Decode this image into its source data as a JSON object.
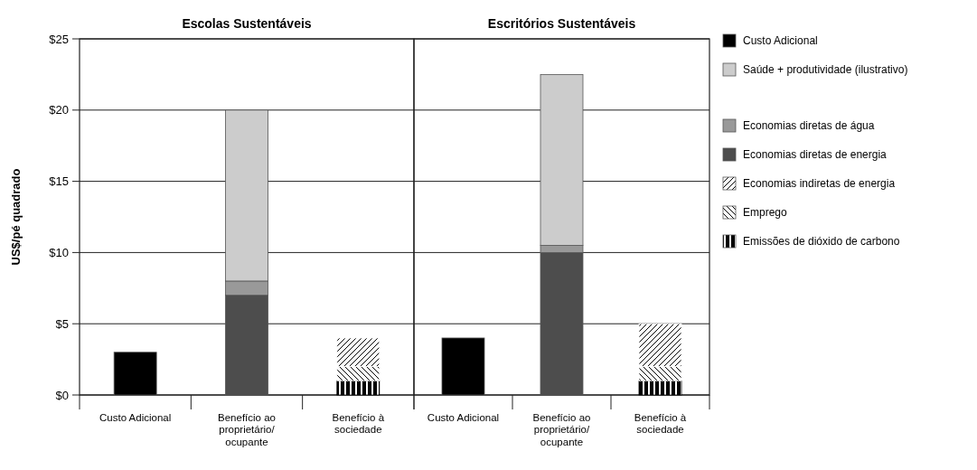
{
  "chart_data": [
    {
      "type": "bar",
      "title": "Escolas Sustentáveis",
      "ylabel": "US$/pé quadrado",
      "categories": [
        "Custo Adicional",
        "Benefício ao proprietário/ocupante",
        "Benefício à sociedade"
      ],
      "stacked": true,
      "ylim": [
        0,
        25
      ],
      "yticks": [
        {
          "value": 0,
          "label": "$0"
        },
        {
          "value": 5,
          "label": "$5"
        },
        {
          "value": 10,
          "label": "$10"
        },
        {
          "value": 15,
          "label": "$15"
        },
        {
          "value": 20,
          "label": "$20"
        },
        {
          "value": 25,
          "label": "$25"
        }
      ],
      "grid": "y",
      "series": [
        {
          "color": "#000000",
          "values": [
            null,
            null,
            1
          ]
        },
        {
          "color": "#ffffff",
          "values": [
            null,
            null,
            1
          ]
        },
        {
          "color": "#ffffff",
          "values": [
            null,
            null,
            2
          ]
        },
        {
          "color": "#4d4d4d",
          "values": [
            null,
            7,
            null
          ]
        },
        {
          "color": "#999999",
          "values": [
            null,
            1,
            null
          ]
        },
        {
          "color": "#cccccc",
          "values": [
            null,
            12,
            null
          ]
        },
        {
          "color": "#000000",
          "values": [
            3,
            null,
            null
          ]
        }
      ]
    },
    {
      "type": "bar",
      "title": "Escritórios Sustentáveis",
      "categories": [
        "Custo Adicional",
        "Benefício ao proprietário/ocupante",
        "Benefício à sociedade"
      ],
      "stacked": true,
      "ylim": [
        0,
        25
      ],
      "yticks": [
        0,
        5,
        10,
        15,
        20,
        25
      ],
      "grid": "y",
      "tick_labels": "x",
      "legend": "right",
      "series": [
        {
          "name": "Emissões de dióxido de carbono",
          "color": "#000000",
          "values": [
            null,
            null,
            1
          ]
        },
        {
          "name": "Emprego",
          "color": "#ffffff",
          "values": [
            null,
            null,
            1
          ]
        },
        {
          "name": "Economias indiretas de energia",
          "color": "#ffffff",
          "values": [
            null,
            null,
            3
          ]
        },
        {
          "name": "Economias diretas de energia",
          "color": "#4d4d4d",
          "values": [
            null,
            10,
            null
          ]
        },
        {
          "name": "Economias diretas de água",
          "color": "#999999",
          "values": [
            null,
            0.5,
            null
          ]
        },
        {
          "name": "Saúde + produtividade (ilustrativo)",
          "color": "#cccccc",
          "values": [
            null,
            12,
            null
          ]
        },
        {
          "name": "Custo Adicional",
          "color": "#000000",
          "values": [
            4,
            null,
            null
          ]
        }
      ]
    }
  ]
}
